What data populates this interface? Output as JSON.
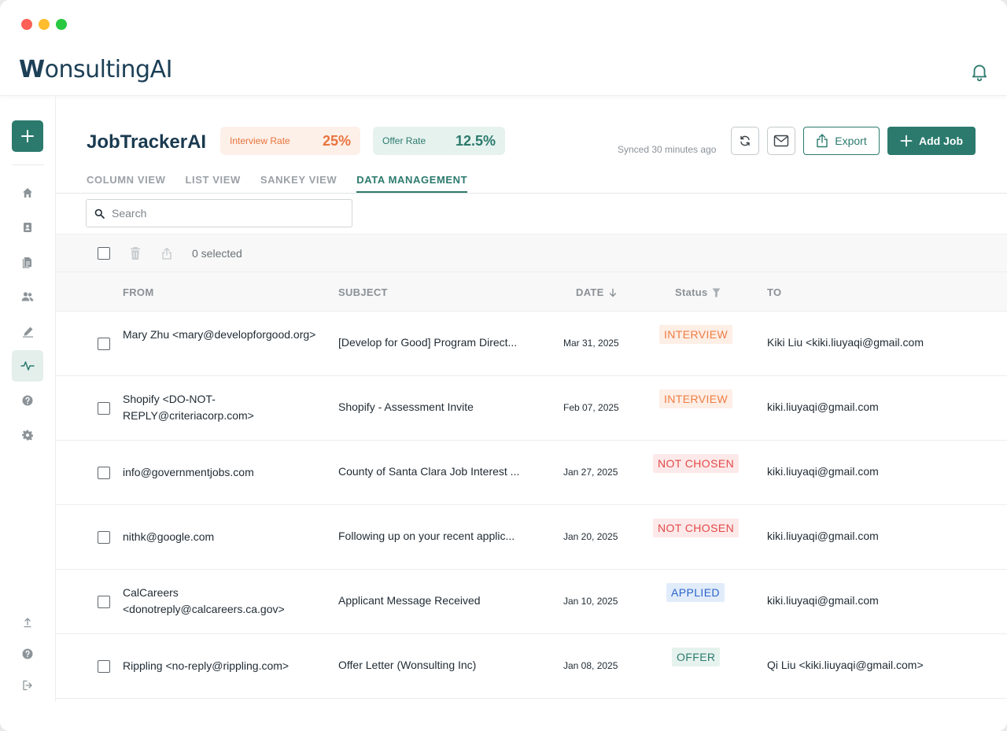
{
  "app": {
    "logo_text": "WonsultingAI",
    "logo_initial": "W",
    "logo_rest": "onsultingAI"
  },
  "header": {
    "title": "JobTrackerAI",
    "interview_rate_label": "Interview Rate",
    "interview_rate_value": "25%",
    "offer_rate_label": "Offer Rate",
    "offer_rate_value": "12.5%",
    "synced_text": "Synced 30 minutes ago",
    "export_label": "Export",
    "add_job_label": "Add Job"
  },
  "tabs": [
    {
      "label": "COLUMN VIEW",
      "active": false
    },
    {
      "label": "LIST VIEW",
      "active": false
    },
    {
      "label": "SANKEY VIEW",
      "active": false
    },
    {
      "label": "DATA MANAGEMENT",
      "active": true
    }
  ],
  "search": {
    "placeholder": "Search",
    "value": ""
  },
  "toolbar": {
    "selected_text": "0 selected"
  },
  "table": {
    "columns": {
      "from": "FROM",
      "subject": "SUBJECT",
      "date": "DATE",
      "status": "Status",
      "to": "TO"
    },
    "rows": [
      {
        "from": "Mary Zhu <mary@developforgood.org>",
        "subject": "[Develop for Good] Program Direct...",
        "date": "Mar 31, 2025",
        "status": "INTERVIEW",
        "to": "Kiki Liu <kiki.liuyaqi@gmail.com"
      },
      {
        "from": "Shopify <DO-NOT-REPLY@criteriacorp.com>",
        "subject": "Shopify - Assessment Invite",
        "date": "Feb 07, 2025",
        "status": "INTERVIEW",
        "to": "kiki.liuyaqi@gmail.com"
      },
      {
        "from": "info@governmentjobs.com",
        "subject": "County of Santa Clara Job Interest ...",
        "date": "Jan 27, 2025",
        "status": "NOT CHOSEN",
        "to": "kiki.liuyaqi@gmail.com"
      },
      {
        "from": "nithk@google.com",
        "subject": "Following up on your recent applic...",
        "date": "Jan 20, 2025",
        "status": "NOT CHOSEN",
        "to": "kiki.liuyaqi@gmail.com"
      },
      {
        "from": "CalCareers <donotreply@calcareers.ca.gov>",
        "subject": "Applicant Message Received",
        "date": "Jan 10, 2025",
        "status": "APPLIED",
        "to": "kiki.liuyaqi@gmail.com"
      },
      {
        "from": "Rippling <no-reply@rippling.com>",
        "subject": "Offer Letter (Wonsulting Inc)",
        "date": "Jan 08, 2025",
        "status": "OFFER",
        "to": "Qi Liu <kiki.liuyaqi@gmail.com>"
      }
    ]
  },
  "icons": {
    "sidebar": [
      "plus-icon",
      "home-icon",
      "contact-book-icon",
      "documents-icon",
      "people-icon",
      "pen-icon",
      "activity-icon",
      "help-icon",
      "settings-icon",
      "upload-icon",
      "help-icon",
      "logout-icon"
    ],
    "header": [
      "bell-icon",
      "sync-icon",
      "mail-icon",
      "export-icon",
      "plus-icon"
    ]
  },
  "colors": {
    "brand": "#2b7a6d",
    "title": "#1a3a4f",
    "interview": "#ee7d43",
    "not_chosen": "#e24848",
    "applied": "#2a63c9",
    "offer": "#2b7a6d"
  }
}
